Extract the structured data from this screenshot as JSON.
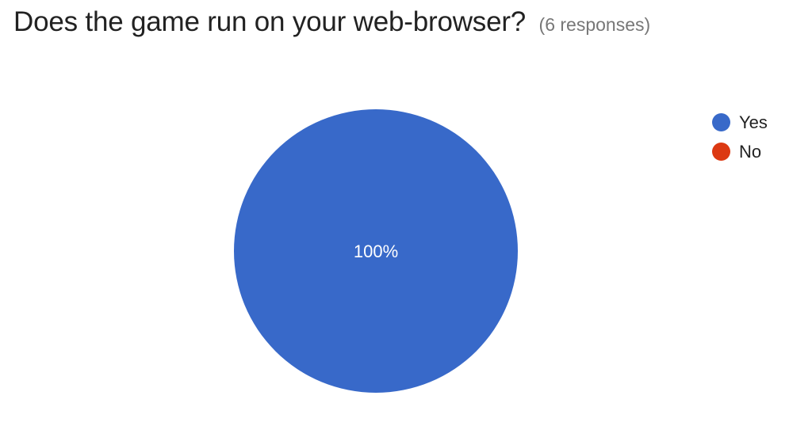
{
  "header": {
    "title": "Does the game run on your web-browser?",
    "subtitle": "(6 responses)"
  },
  "chart_data": {
    "type": "pie",
    "categories": [
      "Yes",
      "No"
    ],
    "values": [
      6,
      0
    ],
    "data_labels": [
      "100%",
      ""
    ],
    "colors": [
      "#3869c9",
      "#dc3912"
    ],
    "legend_position": "right",
    "data_label_color": "#ffffff"
  }
}
